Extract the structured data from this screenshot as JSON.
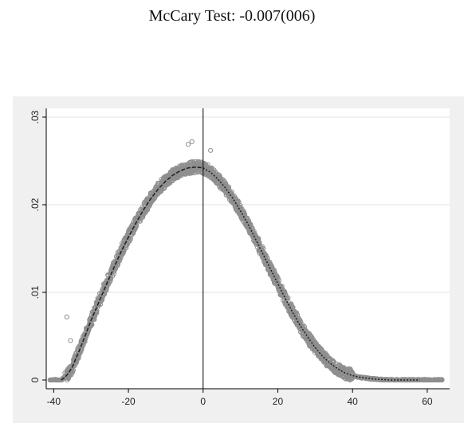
{
  "title": "McCary Test: -0.007(006)",
  "chart_data": {
    "type": "scatter",
    "title": "McCary Test: -0.007(006)",
    "xlabel": "",
    "ylabel": "",
    "xlim": [
      -42,
      66
    ],
    "ylim": [
      -0.001,
      0.031
    ],
    "x_ticks": [
      -40,
      -20,
      0,
      20,
      40,
      60
    ],
    "x_tick_labels": [
      "-40",
      "-20",
      "0",
      "20",
      "40",
      "60"
    ],
    "y_ticks": [
      0,
      0.01,
      0.02,
      0.03
    ],
    "y_tick_labels": [
      "0",
      ".01",
      ".02",
      ".03"
    ],
    "grid": true,
    "cutoff_x": 0,
    "colors": {
      "panel_background": "#f0f0f0",
      "plot_background": "#ffffff",
      "grid": "#e3e3e3",
      "points": "#8f8f8f",
      "fit_line": "#1f1f1f",
      "cutoff_line": "#000000"
    },
    "series": [
      {
        "type": "scatter",
        "x": [
          -41,
          -38,
          -37,
          -36,
          -35,
          -34,
          -33,
          -32,
          -31,
          -30,
          -28,
          -26,
          -24,
          -22,
          -20,
          -18,
          -16,
          -14,
          -12,
          -10,
          -8,
          -6,
          -4,
          -2,
          -1,
          0,
          1,
          2,
          4,
          6,
          8,
          10,
          12,
          14,
          16,
          18,
          20,
          22,
          24,
          26,
          28,
          30,
          32,
          34,
          36,
          38,
          40,
          42,
          44,
          46,
          48,
          50,
          52,
          55,
          58,
          60,
          62,
          64
        ],
        "y": [
          0,
          0,
          0.0003,
          0.0008,
          0.0015,
          0.0025,
          0.0035,
          0.0046,
          0.0058,
          0.0068,
          0.0088,
          0.0108,
          0.0127,
          0.0146,
          0.0163,
          0.0179,
          0.0194,
          0.0207,
          0.0218,
          0.0227,
          0.0234,
          0.0239,
          0.0242,
          0.0243,
          0.0243,
          0.0242,
          0.024,
          0.0237,
          0.0229,
          0.0219,
          0.0207,
          0.0193,
          0.0178,
          0.0161,
          0.0144,
          0.0127,
          0.011,
          0.0093,
          0.0077,
          0.0062,
          0.0049,
          0.0037,
          0.0027,
          0.0019,
          0.0013,
          0.0008,
          0.0005,
          0.0003,
          0.0002,
          0.0001,
          5e-05,
          0,
          0,
          0,
          0,
          0,
          0,
          0
        ]
      },
      {
        "type": "line",
        "x": [
          -38,
          -37,
          -36,
          -35,
          -34,
          -33,
          -32,
          -30,
          -28,
          -26,
          -24,
          -22,
          -20,
          -18,
          -16,
          -14,
          -12,
          -10,
          -8,
          -6,
          -4,
          -2,
          0
        ],
        "y": [
          0,
          0.0003,
          0.0008,
          0.0015,
          0.0025,
          0.0035,
          0.0046,
          0.0068,
          0.0088,
          0.0108,
          0.0127,
          0.0146,
          0.0163,
          0.0179,
          0.0194,
          0.0207,
          0.0218,
          0.0227,
          0.0234,
          0.0239,
          0.0242,
          0.0243,
          0.0242
        ]
      },
      {
        "type": "line",
        "x": [
          0,
          2,
          4,
          6,
          8,
          10,
          12,
          14,
          16,
          18,
          20,
          22,
          24,
          26,
          28,
          30,
          32,
          34,
          36,
          38,
          40,
          42,
          44,
          46,
          48,
          50,
          52,
          55,
          58
        ],
        "y": [
          0.0242,
          0.0237,
          0.0229,
          0.0219,
          0.0207,
          0.0193,
          0.0178,
          0.0161,
          0.0144,
          0.0127,
          0.011,
          0.0093,
          0.0077,
          0.0062,
          0.0049,
          0.0037,
          0.0027,
          0.0019,
          0.0013,
          0.0008,
          0.0005,
          0.0003,
          0.0002,
          0.0001,
          5e-05,
          0,
          0,
          0,
          0
        ]
      }
    ]
  }
}
